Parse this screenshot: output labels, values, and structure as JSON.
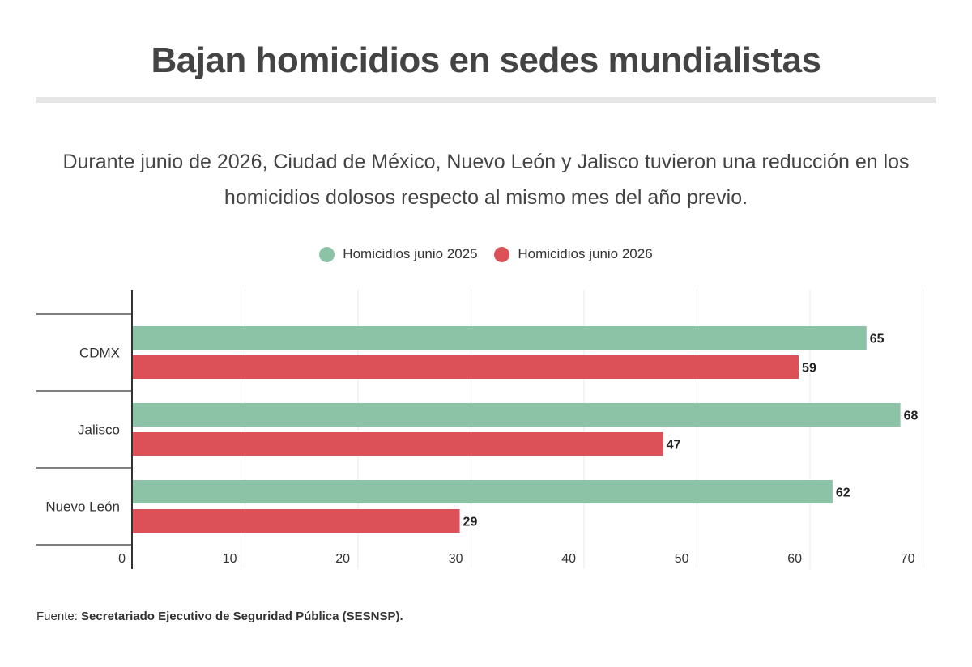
{
  "title": "Bajan homicidios en sedes mundialistas",
  "subtitle": "Durante junio de 2026, Ciudad de México, Nuevo León y Jalisco tuvieron una reducción en los homicidios dolosos respecto al mismo mes del año previo.",
  "footer": {
    "label": "Fuente:",
    "source": "Secretariado Ejecutivo de Seguridad Pública (SESNSP)."
  },
  "chart_data": {
    "type": "bar",
    "orientation": "horizontal",
    "categories": [
      "CDMX",
      "Jalisco",
      "Nuevo León"
    ],
    "series": [
      {
        "name": "Homicidios junio 2025",
        "color": "#8cc2a6",
        "values": [
          65,
          68,
          62
        ]
      },
      {
        "name": "Homicidios junio 2026",
        "color": "#dc5158",
        "values": [
          59,
          47,
          29
        ]
      }
    ],
    "xlim": [
      0,
      70
    ],
    "xticks": [
      0,
      10,
      20,
      30,
      40,
      50,
      60,
      70
    ],
    "grid": true,
    "legend_position": "top-center",
    "data_labels": true
  }
}
